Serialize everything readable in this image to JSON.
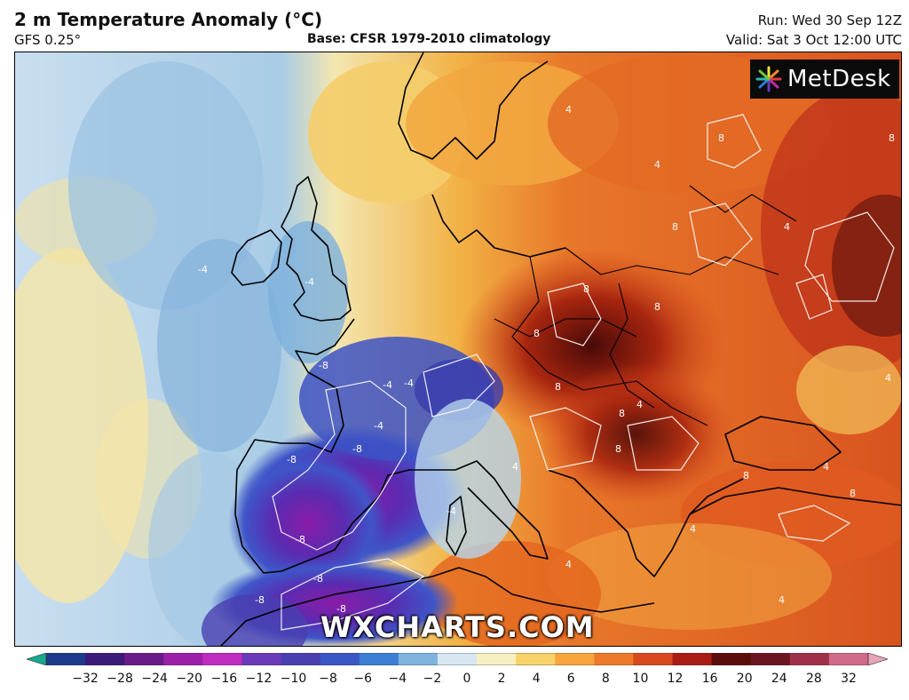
{
  "header": {
    "title": "2 m Temperature Anomaly (°C)",
    "model": "GFS 0.25°",
    "base": "Base: CFSR 1979-2010 climatology",
    "run": "Run: Wed 30 Sep 12Z",
    "valid": "Valid: Sat 3 Oct 12:00 UTC"
  },
  "logo": {
    "text": "MetDesk",
    "icon": "metdesk-starburst-icon"
  },
  "watermark": "WXCHARTS.COM",
  "map": {
    "region": "Europe",
    "contour_labels": [
      "-8",
      "-8",
      "-8",
      "-8",
      "-8",
      "-8",
      "-8",
      "-4",
      "-4",
      "-4",
      "-4",
      "-4",
      "-4",
      "4",
      "4",
      "4",
      "4",
      "4",
      "4",
      "4",
      "4",
      "4",
      "4",
      "8",
      "8",
      "8",
      "8",
      "8",
      "8",
      "8",
      "8",
      "8",
      "8",
      "8",
      "8"
    ]
  },
  "colorbar": {
    "ticks": [
      "−32",
      "−28",
      "−24",
      "−20",
      "−16",
      "−12",
      "−10",
      "−8",
      "−6",
      "−4",
      "−2",
      "0",
      "2",
      "4",
      "6",
      "8",
      "10",
      "12",
      "16",
      "20",
      "24",
      "28",
      "32"
    ],
    "colors": [
      "#1aa88c",
      "#1e3a8a",
      "#3b1a7a",
      "#6a1b8a",
      "#9b1fa8",
      "#c02bc0",
      "#6a3ab8",
      "#4a3fb0",
      "#3b57c4",
      "#3d7fd4",
      "#7fb4e0",
      "#d8e8f2",
      "#f6f0c0",
      "#f7d36a",
      "#f6a63c",
      "#ec7a2a",
      "#d84a1e",
      "#a81e12",
      "#5a0c0a",
      "#6a1622",
      "#a0304a",
      "#cf6a88",
      "#e8a4b8"
    ]
  }
}
